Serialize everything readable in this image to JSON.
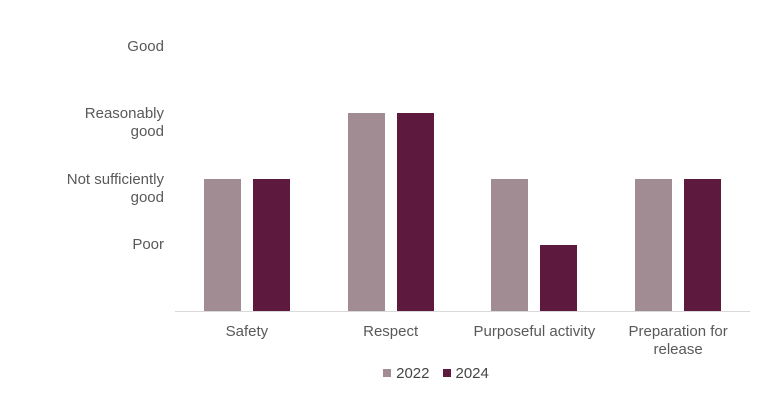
{
  "chart_data": {
    "type": "bar",
    "title": "",
    "categories": [
      "Safety",
      "Respect",
      "Purposeful activity",
      "Preparation for release"
    ],
    "series": [
      {
        "name": "2022",
        "color": "#A18C94",
        "values": [
          2,
          3,
          2,
          2
        ]
      },
      {
        "name": "2024",
        "color": "#5E1A3E",
        "values": [
          2,
          3,
          1,
          2
        ]
      }
    ],
    "value_labels": {
      "1": "Poor",
      "2": "Not sufficiently good",
      "3": "Reasonably good",
      "4": "Good"
    },
    "y_axis": {
      "min": 0,
      "max": 4,
      "tick_labels": [
        {
          "value": 4,
          "lines": [
            "Good"
          ]
        },
        {
          "value": 3,
          "lines": [
            "Reasonably",
            "good"
          ]
        },
        {
          "value": 2,
          "lines": [
            "Not sufficiently",
            "good"
          ]
        },
        {
          "value": 1,
          "lines": [
            "Poor"
          ]
        }
      ]
    },
    "legend": {
      "position": "bottom",
      "entries": [
        "2022",
        "2024"
      ]
    },
    "grid": false,
    "axis_line_color": "#d9d9d9",
    "text_color": "#595959"
  }
}
